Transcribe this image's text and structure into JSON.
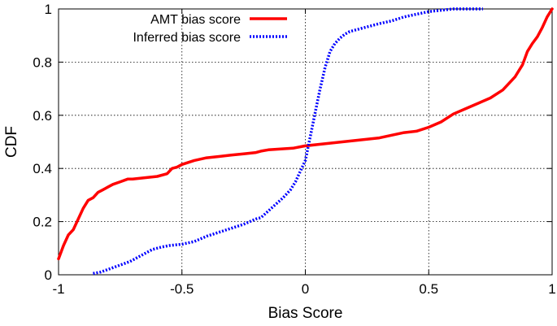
{
  "chart_data": {
    "type": "line",
    "xlabel": "Bias Score",
    "ylabel": "CDF",
    "xlim": [
      -1,
      1
    ],
    "ylim": [
      0,
      1
    ],
    "xticks": [
      "-1",
      "-0.5",
      "0",
      "0.5",
      "1"
    ],
    "yticks": [
      "0",
      "0.2",
      "0.4",
      "0.6",
      "0.8",
      "1"
    ],
    "grid": true,
    "legend_position": "top-left",
    "series": [
      {
        "name": "AMT bias score",
        "color": "#ff0000",
        "style": "solid",
        "x": [
          -1.0,
          -0.98,
          -0.96,
          -0.94,
          -0.92,
          -0.9,
          -0.88,
          -0.86,
          -0.84,
          -0.82,
          -0.8,
          -0.78,
          -0.75,
          -0.72,
          -0.7,
          -0.65,
          -0.6,
          -0.56,
          -0.54,
          -0.52,
          -0.5,
          -0.45,
          -0.4,
          -0.35,
          -0.3,
          -0.25,
          -0.2,
          -0.18,
          -0.15,
          -0.1,
          -0.05,
          0.0,
          0.05,
          0.1,
          0.15,
          0.2,
          0.25,
          0.3,
          0.35,
          0.4,
          0.45,
          0.5,
          0.55,
          0.6,
          0.65,
          0.7,
          0.75,
          0.8,
          0.82,
          0.85,
          0.88,
          0.9,
          0.92,
          0.94,
          0.96,
          0.98,
          1.0
        ],
        "y": [
          0.06,
          0.11,
          0.15,
          0.17,
          0.21,
          0.25,
          0.28,
          0.29,
          0.31,
          0.32,
          0.33,
          0.34,
          0.35,
          0.36,
          0.36,
          0.365,
          0.37,
          0.38,
          0.4,
          0.405,
          0.415,
          0.43,
          0.44,
          0.445,
          0.45,
          0.455,
          0.46,
          0.465,
          0.47,
          0.473,
          0.476,
          0.485,
          0.49,
          0.495,
          0.5,
          0.505,
          0.51,
          0.515,
          0.525,
          0.535,
          0.54,
          0.555,
          0.575,
          0.605,
          0.625,
          0.645,
          0.665,
          0.695,
          0.715,
          0.745,
          0.79,
          0.84,
          0.87,
          0.895,
          0.93,
          0.97,
          1.0
        ]
      },
      {
        "name": "Inferred bias score",
        "color": "#0000ff",
        "style": "dotted",
        "x": [
          -0.86,
          -0.83,
          -0.8,
          -0.77,
          -0.74,
          -0.71,
          -0.68,
          -0.65,
          -0.62,
          -0.6,
          -0.58,
          -0.55,
          -0.5,
          -0.45,
          -0.4,
          -0.35,
          -0.3,
          -0.25,
          -0.2,
          -0.18,
          -0.15,
          -0.12,
          -0.09,
          -0.06,
          -0.04,
          -0.02,
          0.0,
          0.02,
          0.04,
          0.06,
          0.08,
          0.1,
          0.12,
          0.14,
          0.16,
          0.18,
          0.22,
          0.26,
          0.3,
          0.35,
          0.4,
          0.45,
          0.5,
          0.55,
          0.6,
          0.65,
          0.7,
          0.72
        ],
        "y": [
          0.005,
          0.01,
          0.02,
          0.03,
          0.04,
          0.05,
          0.065,
          0.08,
          0.095,
          0.1,
          0.105,
          0.11,
          0.115,
          0.125,
          0.145,
          0.16,
          0.175,
          0.19,
          0.21,
          0.215,
          0.24,
          0.265,
          0.29,
          0.32,
          0.35,
          0.39,
          0.43,
          0.52,
          0.61,
          0.7,
          0.78,
          0.84,
          0.87,
          0.89,
          0.905,
          0.915,
          0.925,
          0.935,
          0.945,
          0.955,
          0.97,
          0.98,
          0.99,
          0.995,
          1.0,
          1.0,
          1.0,
          1.0
        ]
      }
    ]
  }
}
